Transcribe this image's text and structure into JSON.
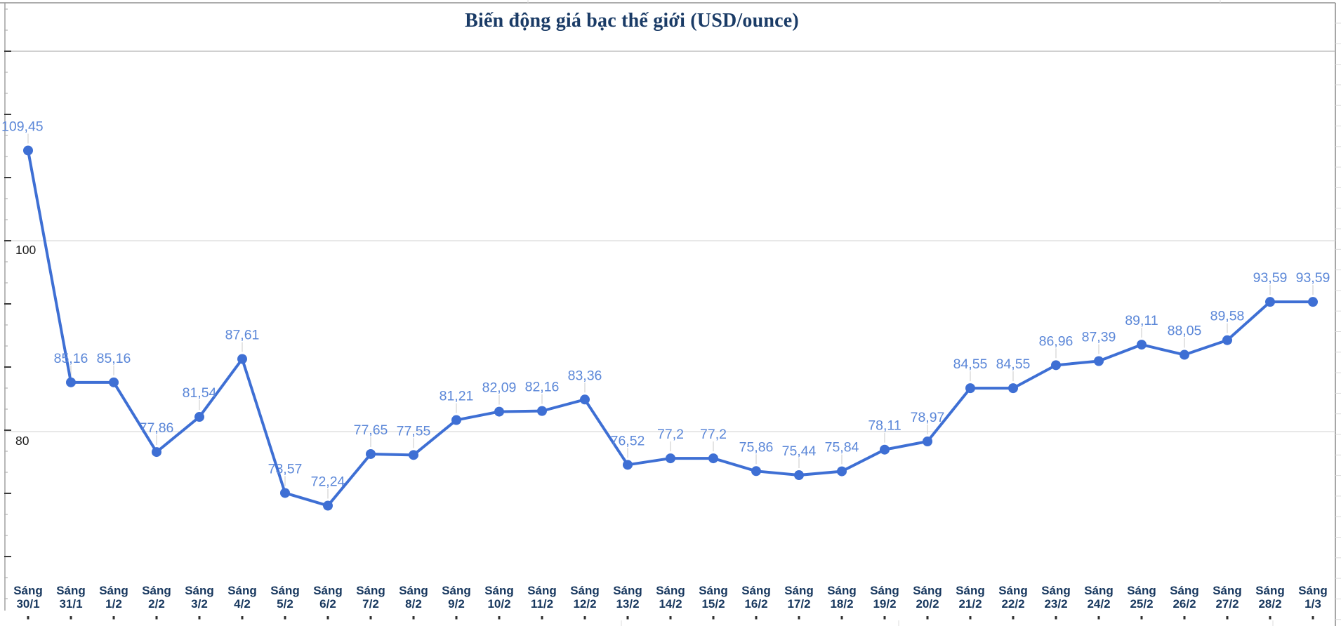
{
  "chart_data": {
    "type": "line",
    "title": "Biến động giá bạc thế giới (USD/ounce)",
    "categories": [
      "Sáng 30/1",
      "Sáng 31/1",
      "Sáng 1/2",
      "Sáng 2/2",
      "Sáng 3/2",
      "Sáng 4/2",
      "Sáng 5/2",
      "Sáng 6/2",
      "Sáng 7/2",
      "Sáng 8/2",
      "Sáng 9/2",
      "Sáng 10/2",
      "Sáng 11/2",
      "Sáng 12/2",
      "Sáng 13/2",
      "Sáng 14/2",
      "Sáng 15/2",
      "Sáng 16/2",
      "Sáng 17/2",
      "Sáng 18/2",
      "Sáng 19/2",
      "Sáng 20/2",
      "Sáng 21/2",
      "Sáng 22/2",
      "Sáng 23/2",
      "Sáng 24/2",
      "Sáng 25/2",
      "Sáng 26/2",
      "Sáng 27/2",
      "Sáng 28/2",
      "Sáng 1/3"
    ],
    "values": [
      109.45,
      85.16,
      85.16,
      77.86,
      81.54,
      87.61,
      73.57,
      72.24,
      77.65,
      77.55,
      81.21,
      82.09,
      82.16,
      83.36,
      76.52,
      77.2,
      77.2,
      75.86,
      75.44,
      75.84,
      78.11,
      78.97,
      84.55,
      84.55,
      86.96,
      87.39,
      89.11,
      88.05,
      89.58,
      93.59,
      93.59
    ],
    "value_labels": [
      "109,45",
      "85,16",
      "85,16",
      "77,86",
      "81,54",
      "87,61",
      "73,57",
      "72,24",
      "77,65",
      "77,55",
      "81,21",
      "82,09",
      "82,16",
      "83,36",
      "76,52",
      "77,2",
      "77,2",
      "75,86",
      "75,44",
      "75,84",
      "78,11",
      "78,97",
      "84,55",
      "84,55",
      "86,96",
      "87,39",
      "89,11",
      "88,05",
      "89,58",
      "93,59",
      "93,59"
    ],
    "xlabel": "",
    "ylabel": "",
    "y_axis": {
      "tick_labels": [
        "100",
        "80"
      ],
      "tick_values": [
        100,
        80
      ],
      "top_gridline_value": 120,
      "grid": "horizontal-only"
    },
    "legend": "none",
    "colors": {
      "series": "#3e6fd4",
      "point": "#3e6fd4",
      "value_label": "#5b87d8",
      "title": "#1a3b66",
      "category_label": "#17375e",
      "gridline": "#d9d9d9",
      "top_gridline": "#b3b3b3",
      "frame": "#909090",
      "axis_line": "#9a9a9a"
    }
  }
}
